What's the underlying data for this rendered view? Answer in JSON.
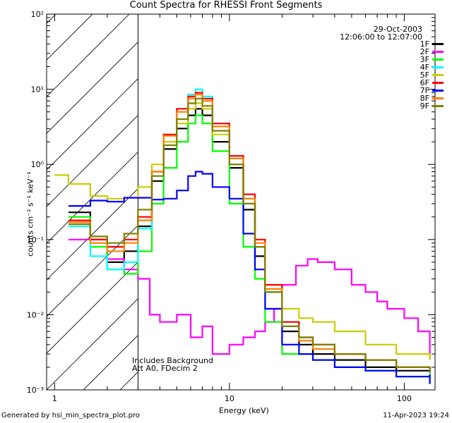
{
  "footer": {
    "generated_by": "Generated by hsi_min_spectra_plot.pro",
    "timestamp": "11-Apr-2023 19:24"
  },
  "annotations": {
    "date": "29-Oct-2003",
    "time_range": "12:06:00 to 12:07:00",
    "note1": "Includes Background",
    "note2": "Att A0, FDecim 2"
  },
  "chart_data": {
    "type": "line",
    "title": "Count Spectra for RHESSI Front Segments",
    "xlabel": "Energy (keV)",
    "ylabel": "counts cm⁻² s⁻¹ keV⁻¹",
    "xscale": "log",
    "yscale": "log",
    "xlim": [
      0.9,
      150
    ],
    "ylim": [
      0.001,
      100
    ],
    "x_ticks": [
      "1",
      "10",
      "100"
    ],
    "y_ticks": [
      "10⁻³",
      "10⁻²",
      "10⁻¹",
      "10⁰",
      "10¹",
      "10²"
    ],
    "y_tick_values": [
      0.001,
      0.01,
      0.1,
      1,
      10,
      100
    ],
    "excluded_region": {
      "from": 0.9,
      "to": 3.0
    },
    "legend_position": "top-right",
    "series": [
      {
        "name": "1F",
        "color": "#000000",
        "points": [
          [
            1.2,
            0.23
          ],
          [
            1.6,
            0.1
          ],
          [
            2.0,
            0.05
          ],
          [
            2.5,
            0.07
          ],
          [
            3.0,
            0.15
          ],
          [
            3.6,
            0.6
          ],
          [
            4.2,
            1.6
          ],
          [
            5.0,
            3.0
          ],
          [
            5.8,
            4.5
          ],
          [
            6.4,
            5.5
          ],
          [
            7.0,
            4.5
          ],
          [
            8.0,
            2.0
          ],
          [
            10,
            0.9
          ],
          [
            12,
            0.25
          ],
          [
            14,
            0.06
          ],
          [
            16,
            0.02
          ],
          [
            20,
            0.006
          ],
          [
            25,
            0.004
          ],
          [
            30,
            0.003
          ],
          [
            40,
            0.0025
          ],
          [
            60,
            0.002
          ],
          [
            90,
            0.0018
          ],
          [
            140,
            0.0015
          ]
        ]
      },
      {
        "name": "2F",
        "color": "#ff00ff",
        "points": [
          [
            1.2,
            0.1
          ],
          [
            2.0,
            0.055
          ],
          [
            2.5,
            0.04
          ],
          [
            3.0,
            0.03
          ],
          [
            3.5,
            0.01
          ],
          [
            4.0,
            0.008
          ],
          [
            5.0,
            0.01
          ],
          [
            6.0,
            0.005
          ],
          [
            7.0,
            0.007
          ],
          [
            8.0,
            0.003
          ],
          [
            10,
            0.004
          ],
          [
            12,
            0.005
          ],
          [
            14,
            0.006
          ],
          [
            16,
            0.008
          ],
          [
            18,
            0.012
          ],
          [
            20,
            0.025
          ],
          [
            24,
            0.045
          ],
          [
            28,
            0.055
          ],
          [
            32,
            0.05
          ],
          [
            40,
            0.04
          ],
          [
            50,
            0.025
          ],
          [
            60,
            0.02
          ],
          [
            70,
            0.015
          ],
          [
            80,
            0.012
          ],
          [
            100,
            0.009
          ],
          [
            120,
            0.006
          ],
          [
            140,
            0.0025
          ]
        ]
      },
      {
        "name": "3F",
        "color": "#00ff00",
        "points": [
          [
            1.2,
            0.2
          ],
          [
            1.6,
            0.08
          ],
          [
            2.0,
            0.04
          ],
          [
            2.5,
            0.035
          ],
          [
            3.0,
            0.07
          ],
          [
            3.6,
            0.3
          ],
          [
            4.2,
            0.9
          ],
          [
            5.0,
            2.0
          ],
          [
            5.8,
            3.5
          ],
          [
            6.4,
            4.5
          ],
          [
            7.0,
            3.5
          ],
          [
            8.0,
            1.5
          ],
          [
            10,
            0.3
          ],
          [
            12,
            0.08
          ],
          [
            14,
            0.03
          ],
          [
            16,
            0.008
          ],
          [
            20,
            0.003
          ],
          [
            25,
            0.003
          ],
          [
            30,
            0.0025
          ],
          [
            40,
            0.002
          ],
          [
            60,
            0.0018
          ],
          [
            90,
            0.0015
          ],
          [
            140,
            0.0012
          ]
        ]
      },
      {
        "name": "4F",
        "color": "#00ffff",
        "points": [
          [
            1.2,
            0.15
          ],
          [
            1.6,
            0.06
          ],
          [
            2.0,
            0.04
          ],
          [
            2.5,
            0.05
          ],
          [
            3.0,
            0.14
          ],
          [
            3.6,
            0.7
          ],
          [
            4.2,
            2.5
          ],
          [
            5.0,
            5.5
          ],
          [
            5.8,
            8.5
          ],
          [
            6.4,
            10
          ],
          [
            7.0,
            8.0
          ],
          [
            8.0,
            3.5
          ],
          [
            10,
            1.2
          ],
          [
            12,
            0.35
          ],
          [
            14,
            0.08
          ],
          [
            16,
            0.02
          ],
          [
            20,
            0.008
          ],
          [
            25,
            0.005
          ],
          [
            30,
            0.004
          ],
          [
            40,
            0.003
          ],
          [
            60,
            0.0025
          ],
          [
            90,
            0.002
          ],
          [
            140,
            0.0016
          ]
        ]
      },
      {
        "name": "5F",
        "color": "#cccc00",
        "points": [
          [
            1.0,
            0.72
          ],
          [
            1.2,
            0.55
          ],
          [
            1.6,
            0.38
          ],
          [
            2.0,
            0.35
          ],
          [
            2.5,
            0.36
          ],
          [
            3.0,
            0.5
          ],
          [
            3.6,
            1.0
          ],
          [
            4.2,
            2.0
          ],
          [
            5.0,
            3.5
          ],
          [
            5.8,
            5.5
          ],
          [
            6.4,
            6.5
          ],
          [
            7.0,
            5.5
          ],
          [
            8.0,
            2.5
          ],
          [
            10,
            1.0
          ],
          [
            12,
            0.3
          ],
          [
            14,
            0.08
          ],
          [
            16,
            0.025
          ],
          [
            20,
            0.012
          ],
          [
            25,
            0.009
          ],
          [
            30,
            0.008
          ],
          [
            40,
            0.006
          ],
          [
            60,
            0.004
          ],
          [
            90,
            0.003
          ],
          [
            140,
            0.0025
          ]
        ]
      },
      {
        "name": "6F",
        "color": "#ff0000",
        "points": [
          [
            1.2,
            0.18
          ],
          [
            1.6,
            0.1
          ],
          [
            2.0,
            0.08
          ],
          [
            2.5,
            0.1
          ],
          [
            3.0,
            0.2
          ],
          [
            3.6,
            0.8
          ],
          [
            4.2,
            2.5
          ],
          [
            5.0,
            5.5
          ],
          [
            5.8,
            8.0
          ],
          [
            6.4,
            9.0
          ],
          [
            7.0,
            7.5
          ],
          [
            8.0,
            3.5
          ],
          [
            10,
            1.3
          ],
          [
            12,
            0.4
          ],
          [
            14,
            0.1
          ],
          [
            16,
            0.025
          ],
          [
            20,
            0.008
          ],
          [
            25,
            0.005
          ],
          [
            30,
            0.004
          ],
          [
            40,
            0.003
          ],
          [
            60,
            0.0025
          ],
          [
            90,
            0.002
          ],
          [
            140,
            0.0018
          ]
        ]
      },
      {
        "name": "7F",
        "color": "#0000ff",
        "points": [
          [
            1.2,
            0.28
          ],
          [
            1.6,
            0.33
          ],
          [
            2.0,
            0.32
          ],
          [
            2.5,
            0.36
          ],
          [
            3.0,
            0.36
          ],
          [
            3.6,
            0.34
          ],
          [
            4.2,
            0.35
          ],
          [
            5.0,
            0.45
          ],
          [
            5.8,
            0.7
          ],
          [
            6.4,
            0.8
          ],
          [
            7.0,
            0.75
          ],
          [
            8.0,
            0.5
          ],
          [
            10,
            0.35
          ],
          [
            12,
            0.12
          ],
          [
            14,
            0.04
          ],
          [
            16,
            0.012
          ],
          [
            20,
            0.004
          ],
          [
            25,
            0.003
          ],
          [
            30,
            0.0025
          ],
          [
            40,
            0.002
          ],
          [
            60,
            0.0018
          ],
          [
            90,
            0.0015
          ],
          [
            140,
            0.0012
          ]
        ]
      },
      {
        "name": "8F",
        "color": "#ff8000",
        "points": [
          [
            1.2,
            0.17
          ],
          [
            1.6,
            0.09
          ],
          [
            2.0,
            0.07
          ],
          [
            2.5,
            0.09
          ],
          [
            3.0,
            0.18
          ],
          [
            3.6,
            0.8
          ],
          [
            4.2,
            2.4
          ],
          [
            5.0,
            5.0
          ],
          [
            5.8,
            7.5
          ],
          [
            6.4,
            8.5
          ],
          [
            7.0,
            7.0
          ],
          [
            8.0,
            3.2
          ],
          [
            10,
            1.2
          ],
          [
            12,
            0.35
          ],
          [
            14,
            0.09
          ],
          [
            16,
            0.022
          ],
          [
            20,
            0.007
          ],
          [
            25,
            0.0045
          ],
          [
            30,
            0.0035
          ],
          [
            40,
            0.003
          ],
          [
            60,
            0.0025
          ],
          [
            90,
            0.002
          ],
          [
            140,
            0.0017
          ]
        ]
      },
      {
        "name": "9F",
        "color": "#808000",
        "points": [
          [
            1.2,
            0.16
          ],
          [
            1.6,
            0.11
          ],
          [
            2.0,
            0.09
          ],
          [
            2.5,
            0.12
          ],
          [
            3.0,
            0.25
          ],
          [
            3.6,
            0.7
          ],
          [
            4.2,
            1.8
          ],
          [
            5.0,
            4.0
          ],
          [
            5.8,
            6.5
          ],
          [
            6.4,
            7.5
          ],
          [
            7.0,
            6.0
          ],
          [
            8.0,
            2.8
          ],
          [
            10,
            1.0
          ],
          [
            12,
            0.3
          ],
          [
            14,
            0.08
          ],
          [
            16,
            0.02
          ],
          [
            20,
            0.007
          ],
          [
            25,
            0.005
          ],
          [
            30,
            0.004
          ],
          [
            40,
            0.003
          ],
          [
            60,
            0.0025
          ],
          [
            90,
            0.002
          ],
          [
            140,
            0.0017
          ]
        ]
      }
    ]
  }
}
